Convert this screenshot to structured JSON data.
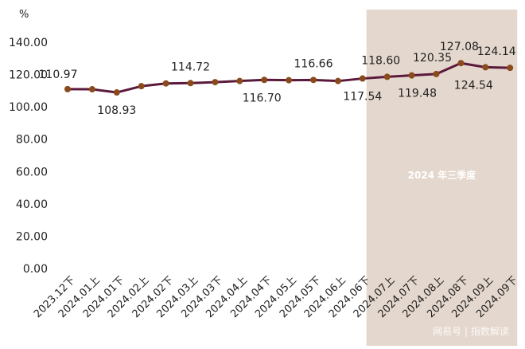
{
  "chart_data": {
    "type": "line",
    "title": "",
    "ylabel": "%",
    "xlabel": "",
    "ylim": [
      0,
      140
    ],
    "yticks": [
      "0.00",
      "20.00",
      "40.00",
      "60.00",
      "80.00",
      "100.00",
      "120.00",
      "140.00"
    ],
    "grid": false,
    "categories": [
      "2023.12下",
      "2024.01上",
      "2024.01下",
      "2024.02上",
      "2024.02下",
      "2024.03上",
      "2024.03下",
      "2024.04上",
      "2024.04下",
      "2024.05上",
      "2024.05下",
      "2024.06上",
      "2024.06下",
      "2024.07上",
      "2024.07下",
      "2024.08上",
      "2024.08下",
      "2024.09上",
      "2024.09下"
    ],
    "values": [
      110.97,
      110.9,
      108.93,
      112.8,
      114.5,
      114.72,
      115.3,
      116.0,
      116.7,
      116.5,
      116.66,
      116.0,
      117.54,
      118.6,
      119.48,
      120.35,
      127.08,
      124.54,
      124.14
    ],
    "data_labels": [
      "110.97",
      null,
      "108.93",
      null,
      null,
      "114.72",
      null,
      null,
      "116.70",
      null,
      "116.66",
      null,
      "117.54",
      "118.60",
      "119.48",
      "120.35",
      "127.08",
      "124.54",
      "124.14"
    ],
    "highlight": {
      "label": "2024 年三季度",
      "from": "2024.07上",
      "to": "2024.09下",
      "color": "#e4d7cd"
    },
    "colors": {
      "line": "#5b1a3c",
      "marker": "#8a4a1c"
    },
    "watermark": "网易号 | 指数解读"
  }
}
